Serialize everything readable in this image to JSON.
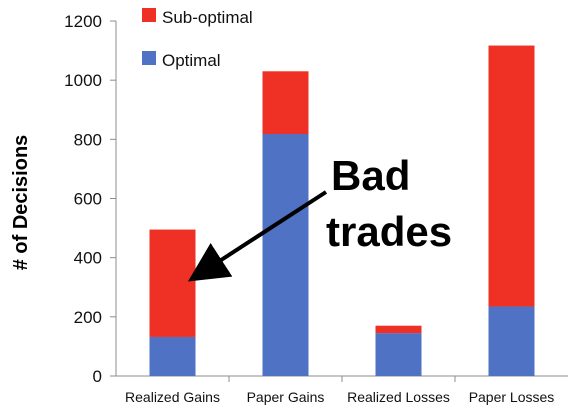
{
  "chart_data": {
    "type": "bar",
    "stacked": true,
    "categories": [
      "Realized Gains",
      "Paper Gains",
      "Realized Losses",
      "Paper Losses"
    ],
    "series": [
      {
        "name": "Optimal",
        "color": "#4F72C4",
        "values": [
          132,
          818,
          145,
          235
        ]
      },
      {
        "name": "Sub-optimal",
        "color": "#EE3124",
        "values": [
          363,
          212,
          25,
          882
        ]
      }
    ],
    "ylabel": "# of Decisions",
    "xlabel": "",
    "ylim": [
      0,
      1200
    ],
    "yticks": [
      0,
      200,
      400,
      600,
      800,
      1000,
      1200
    ],
    "grid": false,
    "legend": "top-left",
    "annotation": {
      "lines": [
        "Bad",
        "trades"
      ],
      "target": "Realized Gains"
    }
  }
}
